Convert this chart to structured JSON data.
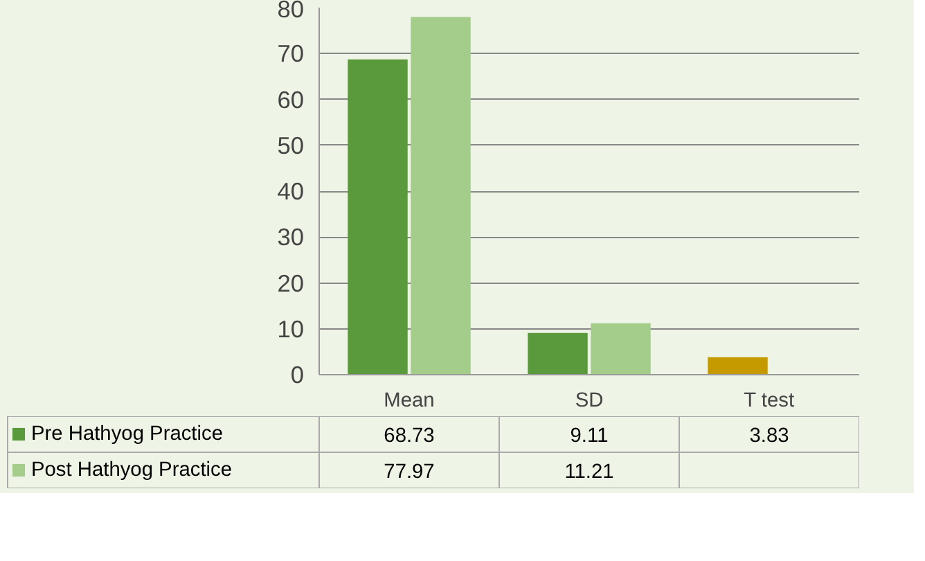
{
  "chart_data": {
    "type": "bar",
    "categories": [
      "Mean",
      "SD",
      "T test"
    ],
    "series": [
      {
        "name": "Pre Hathyog Practice",
        "color": "#5b9a3c",
        "colors": [
          "#5b9a3c",
          "#5b9a3c",
          "#c49a00"
        ],
        "values": [
          68.73,
          9.11,
          3.83
        ]
      },
      {
        "name": "Post Hathyog Practice",
        "color": "#a4cc8a",
        "values": [
          77.97,
          11.21,
          null
        ]
      }
    ],
    "ylim": [
      0,
      80
    ],
    "yticks": [
      0,
      10,
      20,
      30,
      40,
      50,
      60,
      70,
      80
    ],
    "grid": "y",
    "data_labels": true,
    "legend": "bottom"
  }
}
